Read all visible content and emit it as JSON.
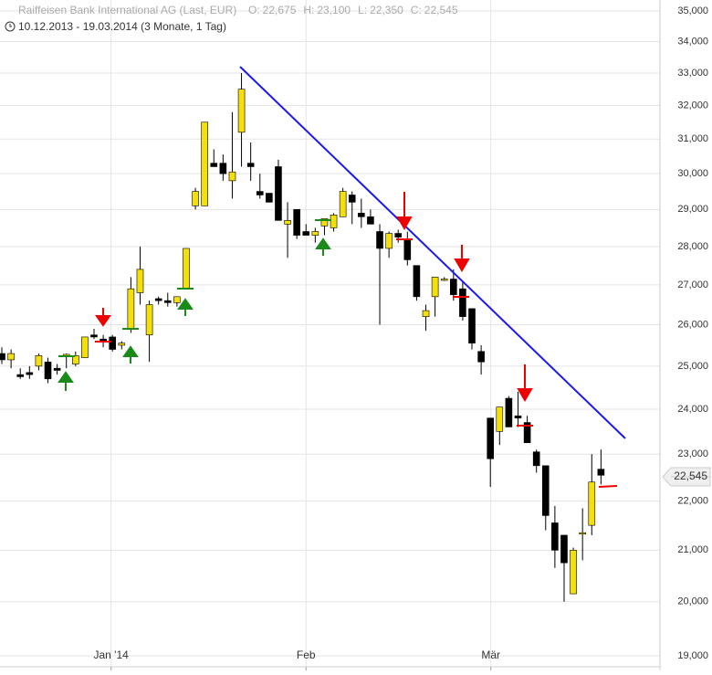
{
  "chart_data": {
    "type": "candlestick",
    "title": "Raiffeisen Bank International AG (Last, EUR)",
    "header": [
      {
        "label": "O:",
        "value": "22,675"
      },
      {
        "label": "H:",
        "value": "23,100"
      },
      {
        "label": "L:",
        "value": "22,350"
      },
      {
        "label": "C:",
        "value": "22,545"
      }
    ],
    "subtitle": "10.12.2013 - 19.03.2014 (3 Monate, 1 Tag)",
    "x": [
      0,
      1,
      2,
      3,
      4,
      5,
      6,
      7,
      8,
      9,
      10,
      11,
      12,
      13,
      14,
      15,
      16,
      17,
      18,
      19,
      20,
      21,
      22,
      23,
      24,
      25,
      26,
      27,
      28,
      29,
      30,
      31,
      32,
      33,
      34,
      35,
      36,
      37,
      38,
      39,
      40,
      41,
      42,
      43,
      44,
      45,
      46,
      47,
      48,
      49,
      50,
      51,
      52,
      53,
      54,
      55,
      56,
      57,
      58,
      59,
      60,
      61,
      62,
      63,
      64,
      65
    ],
    "open": [
      25300,
      25150,
      24800,
      24850,
      25000,
      25100,
      24950,
      25250,
      25050,
      25200,
      25750,
      25650,
      25700,
      25500,
      25900,
      26800,
      25750,
      26650,
      26600,
      26550,
      26900,
      29100,
      29100,
      30300,
      30300,
      29800,
      31200,
      30300,
      29500,
      29450,
      30200,
      28600,
      29000,
      28400,
      28300,
      28550,
      28500,
      28800,
      29400,
      28900,
      28800,
      28400,
      27950,
      28350,
      28200,
      27500,
      26200,
      26700,
      27150,
      27150,
      26900,
      26400,
      25350,
      23800,
      23500,
      24250,
      23850,
      23700,
      23050,
      22750,
      21550,
      21300,
      20150,
      21350,
      21500,
      22675
    ],
    "high": [
      25450,
      25400,
      24950,
      25000,
      25300,
      25200,
      25050,
      25300,
      25350,
      25700,
      25900,
      25750,
      25750,
      25600,
      27200,
      28000,
      26600,
      26700,
      26800,
      26700,
      27950,
      29600,
      31500,
      30700,
      30550,
      31800,
      33000,
      30900,
      30000,
      29450,
      30400,
      29200,
      29000,
      28600,
      28500,
      28700,
      28900,
      29600,
      29500,
      29300,
      29000,
      28600,
      28400,
      28450,
      28400,
      27500,
      26500,
      27200,
      27200,
      27400,
      27100,
      26400,
      25500,
      23800,
      24050,
      24300,
      24400,
      23850,
      23100,
      22750,
      21900,
      21300,
      21050,
      21850,
      23000,
      23100
    ],
    "low": [
      25050,
      24950,
      24700,
      24700,
      24900,
      24600,
      24800,
      24950,
      25000,
      25200,
      25650,
      25450,
      25350,
      25400,
      25800,
      26500,
      25100,
      26500,
      26450,
      26450,
      26900,
      29000,
      29100,
      30200,
      29800,
      29300,
      30200,
      29800,
      29300,
      29250,
      28700,
      27700,
      28200,
      28300,
      28100,
      28300,
      28400,
      28800,
      28600,
      28500,
      28600,
      26000,
      27700,
      28100,
      27500,
      26600,
      25850,
      26200,
      27100,
      26600,
      26100,
      25400,
      24800,
      22300,
      23200,
      23650,
      23600,
      23300,
      22600,
      21400,
      20650,
      20000,
      20150,
      20800,
      21300,
      22350
    ],
    "close": [
      25150,
      25300,
      24750,
      24800,
      25250,
      24700,
      24900,
      25280,
      25250,
      25700,
      25700,
      25600,
      25400,
      25550,
      26900,
      27400,
      26500,
      26600,
      26550,
      26700,
      27950,
      29500,
      31500,
      30200,
      30000,
      30050,
      32500,
      30200,
      29400,
      29200,
      28700,
      28700,
      28300,
      28300,
      28400,
      28750,
      28850,
      29500,
      29200,
      28800,
      28600,
      27950,
      28350,
      28250,
      27650,
      26700,
      26350,
      27200,
      27150,
      26750,
      26200,
      25550,
      25100,
      22900,
      24050,
      23600,
      23800,
      23250,
      22750,
      21700,
      21000,
      20750,
      21000,
      21350,
      22400,
      22545
    ],
    "up_color": "#f5df0a",
    "down_color": "#000000",
    "log_scale": true,
    "grid": true,
    "xlim": [
      -0.2,
      71.4
    ],
    "xticks": [
      {
        "value": 11.85,
        "label": "Jan '14"
      },
      {
        "value": 33,
        "label": "Feb"
      },
      {
        "value": 53.05,
        "label": "Mär"
      }
    ],
    "ylim": [
      19000,
      35000
    ],
    "yticks": [
      {
        "value": 19000,
        "label": "19,000"
      },
      {
        "value": 20000,
        "label": "20,000"
      },
      {
        "value": 21000,
        "label": "21,000"
      },
      {
        "value": 22000,
        "label": "22,000"
      },
      {
        "value": 23000,
        "label": "23,000"
      },
      {
        "value": 24000,
        "label": "24,000"
      },
      {
        "value": 25000,
        "label": "25,000"
      },
      {
        "value": 26000,
        "label": "26,000"
      },
      {
        "value": 27000,
        "label": "27,000"
      },
      {
        "value": 28000,
        "label": "28,000"
      },
      {
        "value": 29000,
        "label": "29,000"
      },
      {
        "value": 30000,
        "label": "30,000"
      },
      {
        "value": 31000,
        "label": "31,000"
      },
      {
        "value": 32000,
        "label": "32,000"
      },
      {
        "value": 33000,
        "label": "33,000"
      },
      {
        "value": 34000,
        "label": "34,000"
      },
      {
        "value": 35000,
        "label": "35,000"
      }
    ]
  }
}
